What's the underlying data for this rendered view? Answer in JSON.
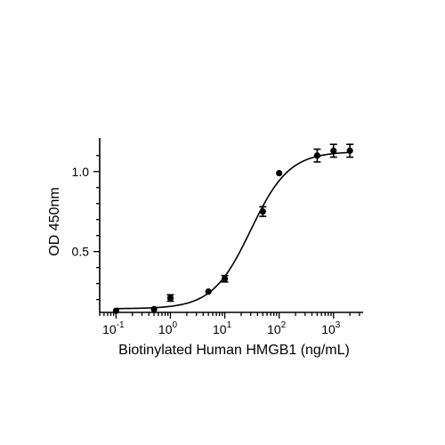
{
  "chart_data": {
    "type": "scatter",
    "xlabel": "Biotinylated Human HMGB1 (ng/mL)",
    "ylabel": "OD 450nm",
    "x_scale": "log",
    "xlim": [
      0.05,
      3500
    ],
    "ylim": [
      0.12,
      1.21
    ],
    "x_ticks": [
      {
        "value": 0.1,
        "base": "10",
        "exp": "-1"
      },
      {
        "value": 1,
        "base": "10",
        "exp": "0"
      },
      {
        "value": 10,
        "base": "10",
        "exp": "1"
      },
      {
        "value": 100,
        "base": "10",
        "exp": "2"
      },
      {
        "value": 1000,
        "base": "10",
        "exp": "3"
      }
    ],
    "y_ticks": [
      {
        "value": 0.5,
        "label": "0.5"
      },
      {
        "value": 1.0,
        "label": "1.0"
      }
    ],
    "grid": false,
    "legend": "none",
    "points": [
      {
        "x": 0.1,
        "y": 0.13,
        "err": 0.01
      },
      {
        "x": 0.5,
        "y": 0.14,
        "err": 0.01
      },
      {
        "x": 1,
        "y": 0.21,
        "err": 0.02
      },
      {
        "x": 5,
        "y": 0.25,
        "err": 0.01
      },
      {
        "x": 10,
        "y": 0.33,
        "err": 0.02
      },
      {
        "x": 50,
        "y": 0.75,
        "err": 0.03
      },
      {
        "x": 100,
        "y": 0.99,
        "err": 0.01
      },
      {
        "x": 500,
        "y": 1.1,
        "err": 0.04
      },
      {
        "x": 1000,
        "y": 1.13,
        "err": 0.04
      },
      {
        "x": 2000,
        "y": 1.13,
        "err": 0.04
      }
    ],
    "fit": {
      "type": "4PL",
      "bottom": 0.143,
      "top": 1.125,
      "ec50": 30,
      "hill": 1.23
    }
  }
}
